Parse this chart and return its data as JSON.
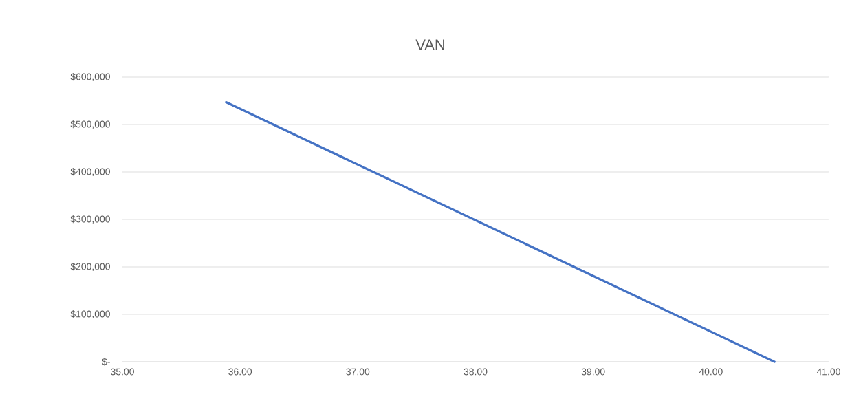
{
  "chart_data": {
    "type": "line",
    "title": "VAN",
    "x": [
      35.88,
      40.54
    ],
    "series": [
      {
        "color": "#4472c4",
        "values": [
          547000,
          0
        ]
      }
    ],
    "xlim": [
      35,
      41
    ],
    "xticks": [
      {
        "value": 35,
        "label": "35.00"
      },
      {
        "value": 36,
        "label": "36.00"
      },
      {
        "value": 37,
        "label": "37.00"
      },
      {
        "value": 38,
        "label": "38.00"
      },
      {
        "value": 39,
        "label": "39.00"
      },
      {
        "value": 40,
        "label": "40.00"
      },
      {
        "value": 41,
        "label": "41.00"
      }
    ],
    "ylim": [
      0,
      600000
    ],
    "yticks": [
      {
        "value": 0,
        "label": "$-"
      },
      {
        "value": 100000,
        "label": "$100,000"
      },
      {
        "value": 200000,
        "label": "$200,000"
      },
      {
        "value": 300000,
        "label": "$300,000"
      },
      {
        "value": 400000,
        "label": "$400,000"
      },
      {
        "value": 500000,
        "label": "$500,000"
      },
      {
        "value": 600000,
        "label": "$600,000"
      }
    ],
    "grid": "y",
    "marker": "none",
    "line_style": "solid"
  }
}
